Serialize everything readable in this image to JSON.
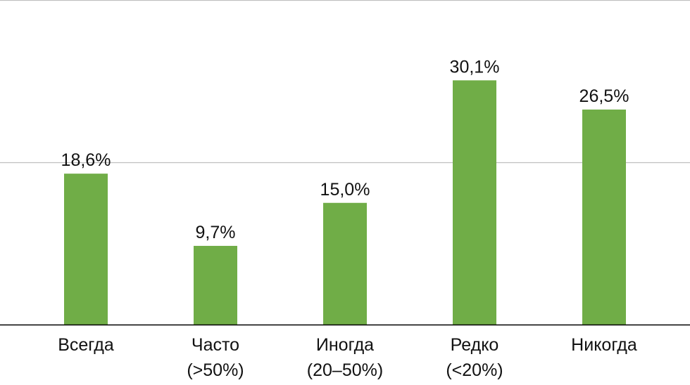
{
  "chart_data": {
    "type": "bar",
    "categories": [
      [
        "Всегда"
      ],
      [
        "Часто",
        "(>50%)"
      ],
      [
        "Иногда",
        "(20–50%)"
      ],
      [
        "Редко",
        "(<20%)"
      ],
      [
        "Никогда"
      ]
    ],
    "values": [
      18.6,
      9.7,
      15.0,
      30.1,
      26.5
    ],
    "value_labels": [
      "18,6%",
      "9,7%",
      "15,0%",
      "30,1%",
      "26,5%"
    ],
    "ylim": [
      0,
      40
    ],
    "gridlines": [
      20,
      40
    ],
    "grid": true,
    "bar_color": "#70ad47",
    "gridline_color": "#bfbfbf",
    "axis_color": "#000000",
    "title": "",
    "xlabel": "",
    "ylabel": ""
  }
}
